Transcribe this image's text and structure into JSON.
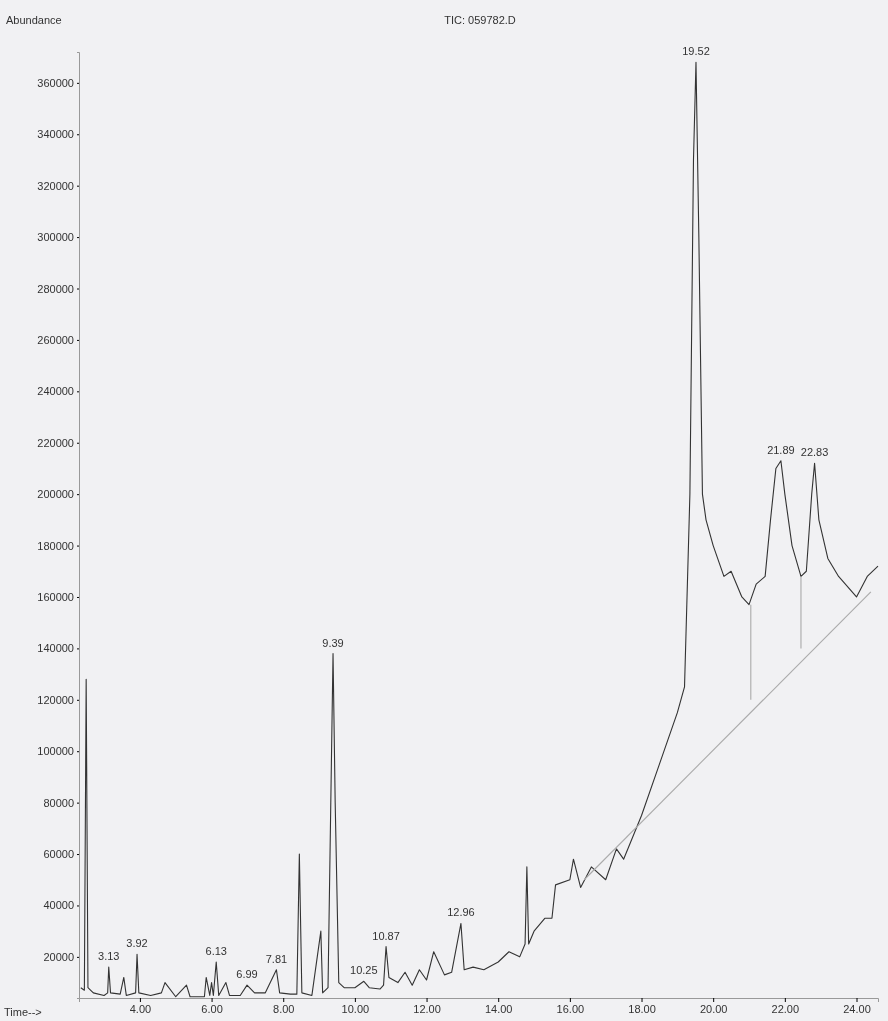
{
  "chart_data": {
    "type": "line",
    "title": "TIC: 059782.D",
    "ylabel": "Abundance",
    "xlabel": "Time-->",
    "xlim": [
      2.3,
      24.6
    ],
    "ylim": [
      4000,
      372000
    ],
    "xticks": [
      {
        "value": 4,
        "label": "4.00"
      },
      {
        "value": 6,
        "label": "6.00"
      },
      {
        "value": 8,
        "label": "8.00"
      },
      {
        "value": 10,
        "label": "10.00"
      },
      {
        "value": 12,
        "label": "12.00"
      },
      {
        "value": 14,
        "label": "14.00"
      },
      {
        "value": 16,
        "label": "16.00"
      },
      {
        "value": 18,
        "label": "18.00"
      },
      {
        "value": 20,
        "label": "20.00"
      },
      {
        "value": 22,
        "label": "22.00"
      },
      {
        "value": 24,
        "label": "24.00"
      }
    ],
    "yticks": [
      20000,
      40000,
      60000,
      80000,
      100000,
      120000,
      140000,
      160000,
      180000,
      200000,
      220000,
      240000,
      260000,
      280000,
      300000,
      320000,
      340000,
      360000
    ],
    "grid": false,
    "marker": "none",
    "line_style": "solid",
    "series": [
      {
        "color": "#333333",
        "x": [
          2.35,
          2.45,
          2.5,
          2.55,
          2.7,
          3.0,
          3.1,
          3.13,
          3.18,
          3.45,
          3.55,
          3.62,
          3.88,
          3.92,
          3.97,
          4.3,
          4.6,
          4.7,
          5.0,
          5.3,
          5.4,
          5.8,
          5.85,
          5.95,
          6.0,
          6.05,
          6.13,
          6.2,
          6.4,
          6.5,
          6.8,
          6.99,
          7.2,
          7.5,
          7.81,
          7.9,
          8.2,
          8.38,
          8.45,
          8.52,
          8.8,
          9.05,
          9.1,
          9.25,
          9.39,
          9.45,
          9.55,
          9.7,
          10.0,
          10.25,
          10.4,
          10.7,
          10.8,
          10.87,
          10.95,
          11.2,
          11.4,
          11.6,
          11.8,
          12.0,
          12.2,
          12.5,
          12.7,
          12.96,
          13.05,
          13.3,
          13.6,
          14.0,
          14.3,
          14.6,
          14.75,
          14.8,
          14.85,
          15.0,
          15.3,
          15.5,
          15.6,
          16.0,
          16.1,
          16.3,
          16.6,
          17.0,
          17.3,
          17.5,
          18.0,
          18.5,
          19.0,
          19.2,
          19.35,
          19.45,
          19.52,
          19.6,
          19.7,
          19.8,
          20.0,
          20.3,
          20.5,
          20.8,
          21.0,
          21.2,
          21.45,
          21.6,
          21.75,
          21.89,
          22.0,
          22.2,
          22.45,
          22.6,
          22.75,
          22.83,
          22.95,
          23.2,
          23.5,
          24.0,
          24.3,
          24.6
        ],
        "values": [
          8000,
          7000,
          128000,
          8000,
          6000,
          5000,
          6000,
          16000,
          6000,
          5500,
          12000,
          5000,
          6000,
          21000,
          6000,
          5000,
          6000,
          10000,
          4500,
          9000,
          4500,
          4500,
          12000,
          5000,
          10000,
          5000,
          18000,
          5000,
          10000,
          5000,
          5000,
          9000,
          6000,
          6000,
          15000,
          6000,
          5500,
          5500,
          60000,
          6000,
          5000,
          30000,
          6000,
          8000,
          138000,
          80000,
          10000,
          8000,
          8000,
          10500,
          8000,
          7500,
          9000,
          24000,
          12000,
          10000,
          14000,
          9000,
          15000,
          11000,
          22000,
          13000,
          14000,
          33000,
          15000,
          16000,
          15000,
          18000,
          22000,
          20000,
          25000,
          55000,
          25000,
          30000,
          35000,
          35000,
          48000,
          50000,
          58000,
          47000,
          55000,
          50000,
          62000,
          58000,
          75000,
          95000,
          115000,
          125000,
          200000,
          330000,
          368000,
          300000,
          200000,
          190000,
          180000,
          168000,
          170000,
          160000,
          157000,
          165000,
          168000,
          190000,
          210000,
          213000,
          200000,
          180000,
          168000,
          170000,
          200000,
          212000,
          190000,
          175000,
          168000,
          160000,
          168000,
          172000
        ]
      },
      {
        "color": "#aaaaaa",
        "x": [
          16.4,
          24.4
        ],
        "values": [
          50000,
          162000
        ]
      },
      {
        "color": "#aaaaaa",
        "x": [
          21.05,
          21.05
        ],
        "values": [
          120000,
          157000
        ]
      },
      {
        "color": "#aaaaaa",
        "x": [
          22.45,
          22.45
        ],
        "values": [
          140000,
          168000
        ]
      }
    ],
    "annotations": [
      {
        "text": "3.13",
        "x": 3.13,
        "y": 16000
      },
      {
        "text": "3.92",
        "x": 3.92,
        "y": 21000
      },
      {
        "text": "6.13",
        "x": 6.13,
        "y": 18000
      },
      {
        "text": "6.99",
        "x": 6.99,
        "y": 9000
      },
      {
        "text": "7.81",
        "x": 7.81,
        "y": 15000
      },
      {
        "text": "9.39",
        "x": 9.39,
        "y": 138000
      },
      {
        "text": "10.25",
        "x": 10.25,
        "y": 10500
      },
      {
        "text": "10.87",
        "x": 10.87,
        "y": 24000
      },
      {
        "text": "12.96",
        "x": 12.96,
        "y": 33000
      },
      {
        "text": "19.52",
        "x": 19.52,
        "y": 368000
      },
      {
        "text": "21.89",
        "x": 21.89,
        "y": 213000
      },
      {
        "text": "22.83",
        "x": 22.83,
        "y": 212000
      }
    ]
  }
}
